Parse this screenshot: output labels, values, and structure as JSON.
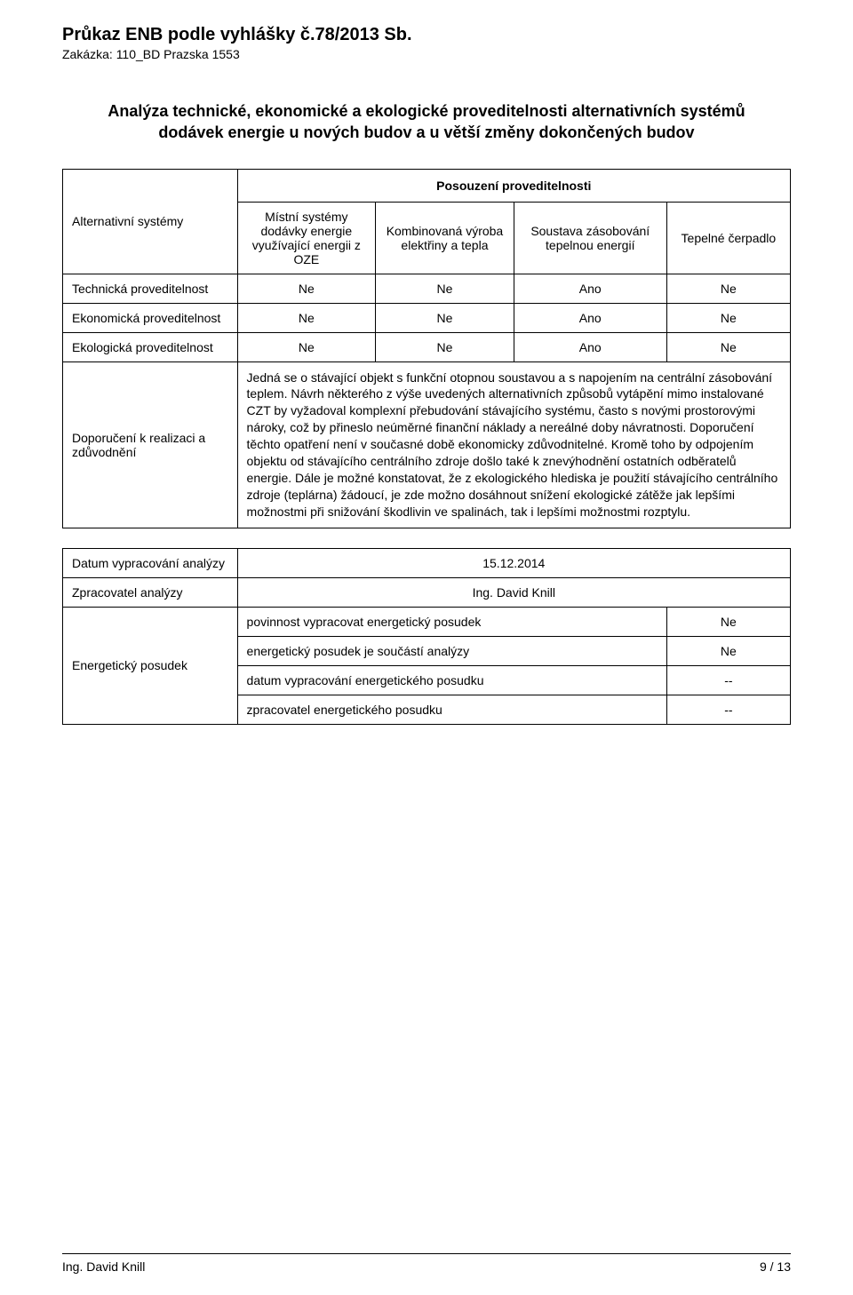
{
  "header": {
    "title": "Průkaz ENB podle vyhlášky č.78/2013 Sb.",
    "subtitle": "Zakázka: 110_BD Prazska 1553"
  },
  "heading": "Analýza technické, ekonomické a ekologické proveditelnosti alternativních systémů dodávek energie u nových budov a u větší změny dokončených budov",
  "table1": {
    "assessment_header": "Posouzení proveditelnosti",
    "row_label_alt": "Alternativní systémy",
    "col_headers": {
      "a": "Místní systémy dodávky energie využívající energii z OZE",
      "b": "Kombinovaná výroba elektřiny a tepla",
      "c": "Soustava zásobování tepelnou energií",
      "d": "Tepelné čerpadlo"
    },
    "rows": [
      {
        "label": "Technická proveditelnost",
        "a": "Ne",
        "b": "Ne",
        "c": "Ano",
        "d": "Ne"
      },
      {
        "label": "Ekonomická proveditelnost",
        "a": "Ne",
        "b": "Ne",
        "c": "Ano",
        "d": "Ne"
      },
      {
        "label": "Ekologická proveditelnost",
        "a": "Ne",
        "b": "Ne",
        "c": "Ano",
        "d": "Ne"
      }
    ],
    "recommendation_label": "Doporučení k realizaci a zdůvodnění",
    "recommendation_text": "Jedná se o stávající objekt s funkční otopnou soustavou a s napojením na centrální zásobování teplem. Návrh některého z výše uvedených alternativních způsobů vytápění mimo instalované CZT by vyžadoval komplexní přebudování stávajícího systému, často s novými prostorovými nároky, což by přineslo neúměrné finanční náklady a nereálné doby návratnosti. Doporučení těchto opatření není v současné době ekonomicky zdůvodnitelné. Kromě toho by odpojením objektu od stávajícího centrálního zdroje došlo také k znevýhodnění ostatních odběratelů energie. Dále je možné konstatovat, že z ekologického hlediska je použití stávajícího centrálního zdroje (teplárna) žádoucí, je zde možno dosáhnout snížení ekologické zátěže jak lepšími možnostmi při snižování škodlivin ve spalinách, tak i lepšími možnostmi rozptylu."
  },
  "table2": {
    "rows": {
      "date_label": "Datum vypracování analýzy",
      "date_value": "15.12.2014",
      "author_label": "Zpracovatel analýzy",
      "author_value": "Ing. David Knill",
      "posudek_label": "Energetický posudek",
      "posudek_items": [
        {
          "text": "povinnost vypracovat energetický posudek",
          "val": "Ne"
        },
        {
          "text": "energetický posudek je součástí analýzy",
          "val": "Ne"
        },
        {
          "text": "datum vypracování energetického posudku",
          "val": "--"
        },
        {
          "text": "zpracovatel energetického posudku",
          "val": "--"
        }
      ]
    }
  },
  "footer": {
    "left": "Ing. David Knill",
    "right": "9 / 13"
  },
  "style": {
    "font_family": "Arial",
    "text_color": "#000000",
    "background": "#ffffff",
    "border_color": "#000000",
    "title_fontsize_pt": 15,
    "subtitle_fontsize_pt": 10.5,
    "heading_fontsize_pt": 13.5,
    "body_fontsize_pt": 10.5,
    "footer_fontsize_pt": 10.5
  }
}
